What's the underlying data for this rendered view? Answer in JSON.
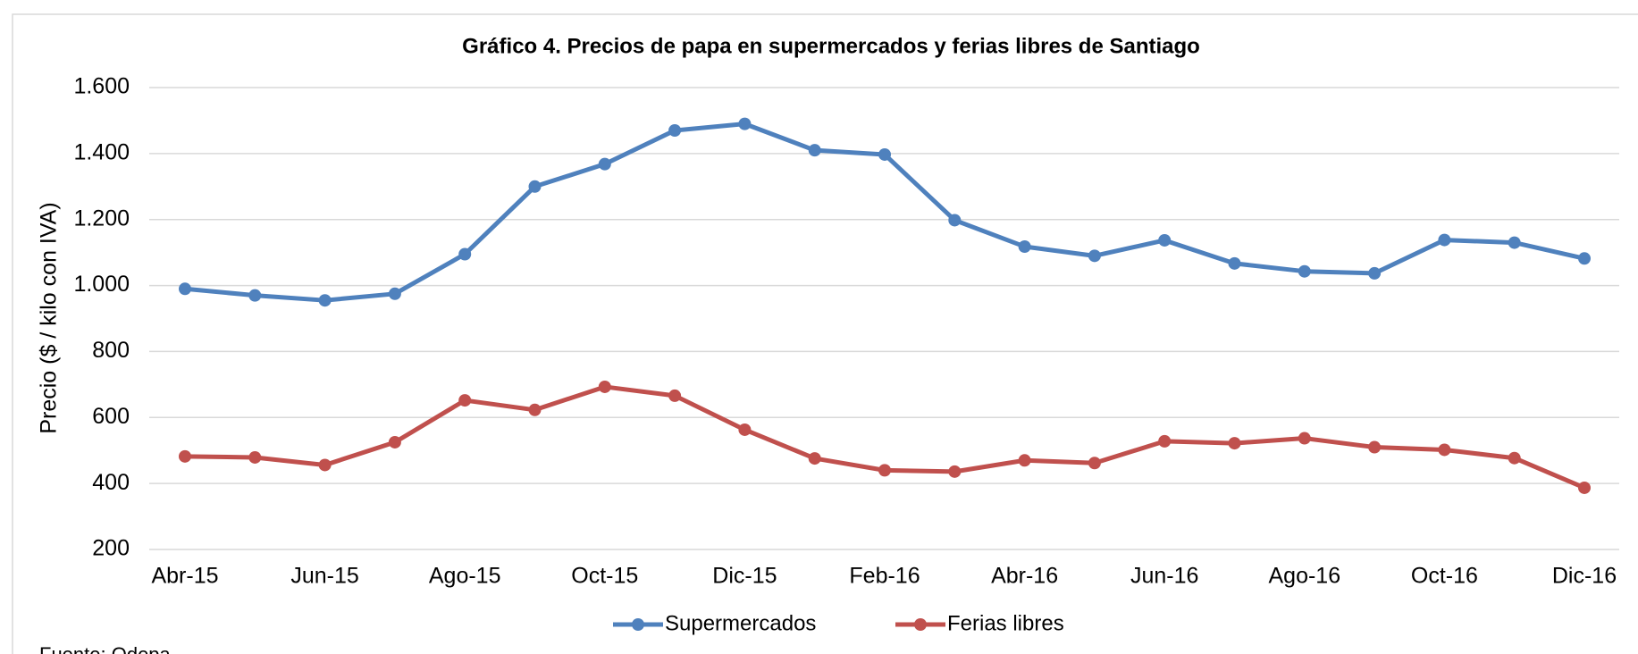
{
  "chart_data": {
    "type": "line",
    "title": "Gráfico 4. Precios de papa en supermercados y ferias libres de Santiago",
    "y_label": "Precio ($ / kilo con IVA)",
    "source": "Fuente: Odepa",
    "categories": [
      "Abr-15",
      null,
      "Jun-15",
      null,
      "Ago-15",
      null,
      "Oct-15",
      null,
      "Dic-15",
      null,
      "Feb-16",
      null,
      "Abr-16",
      null,
      "Jun-16",
      null,
      "Ago-16",
      null,
      "Oct-16",
      null,
      "Dic-16"
    ],
    "series": [
      {
        "name": "Supermercados",
        "color": "#4f81bd",
        "values": [
          990,
          970,
          955,
          975,
          1095,
          1300,
          1368,
          1470,
          1490,
          1410,
          1397,
          1198,
          1118,
          1090,
          1137,
          1067,
          1043,
          1037,
          1138,
          1130,
          1082
        ]
      },
      {
        "name": "Ferias libres",
        "color": "#c0504d",
        "values": [
          482,
          479,
          456,
          525,
          652,
          623,
          693,
          666,
          563,
          476,
          440,
          436,
          470,
          462,
          528,
          522,
          537,
          510,
          502,
          477,
          387
        ]
      }
    ],
    "ylim": [
      200,
      1600
    ],
    "yticks": [
      200,
      400,
      600,
      800,
      {
        "value": 1000,
        "label": "1.000"
      },
      {
        "value": 1200,
        "label": "1.200"
      },
      {
        "value": 1400,
        "label": "1.400"
      },
      {
        "value": 1600,
        "label": "1.600"
      }
    ],
    "grid": true,
    "legend": "bottom"
  }
}
